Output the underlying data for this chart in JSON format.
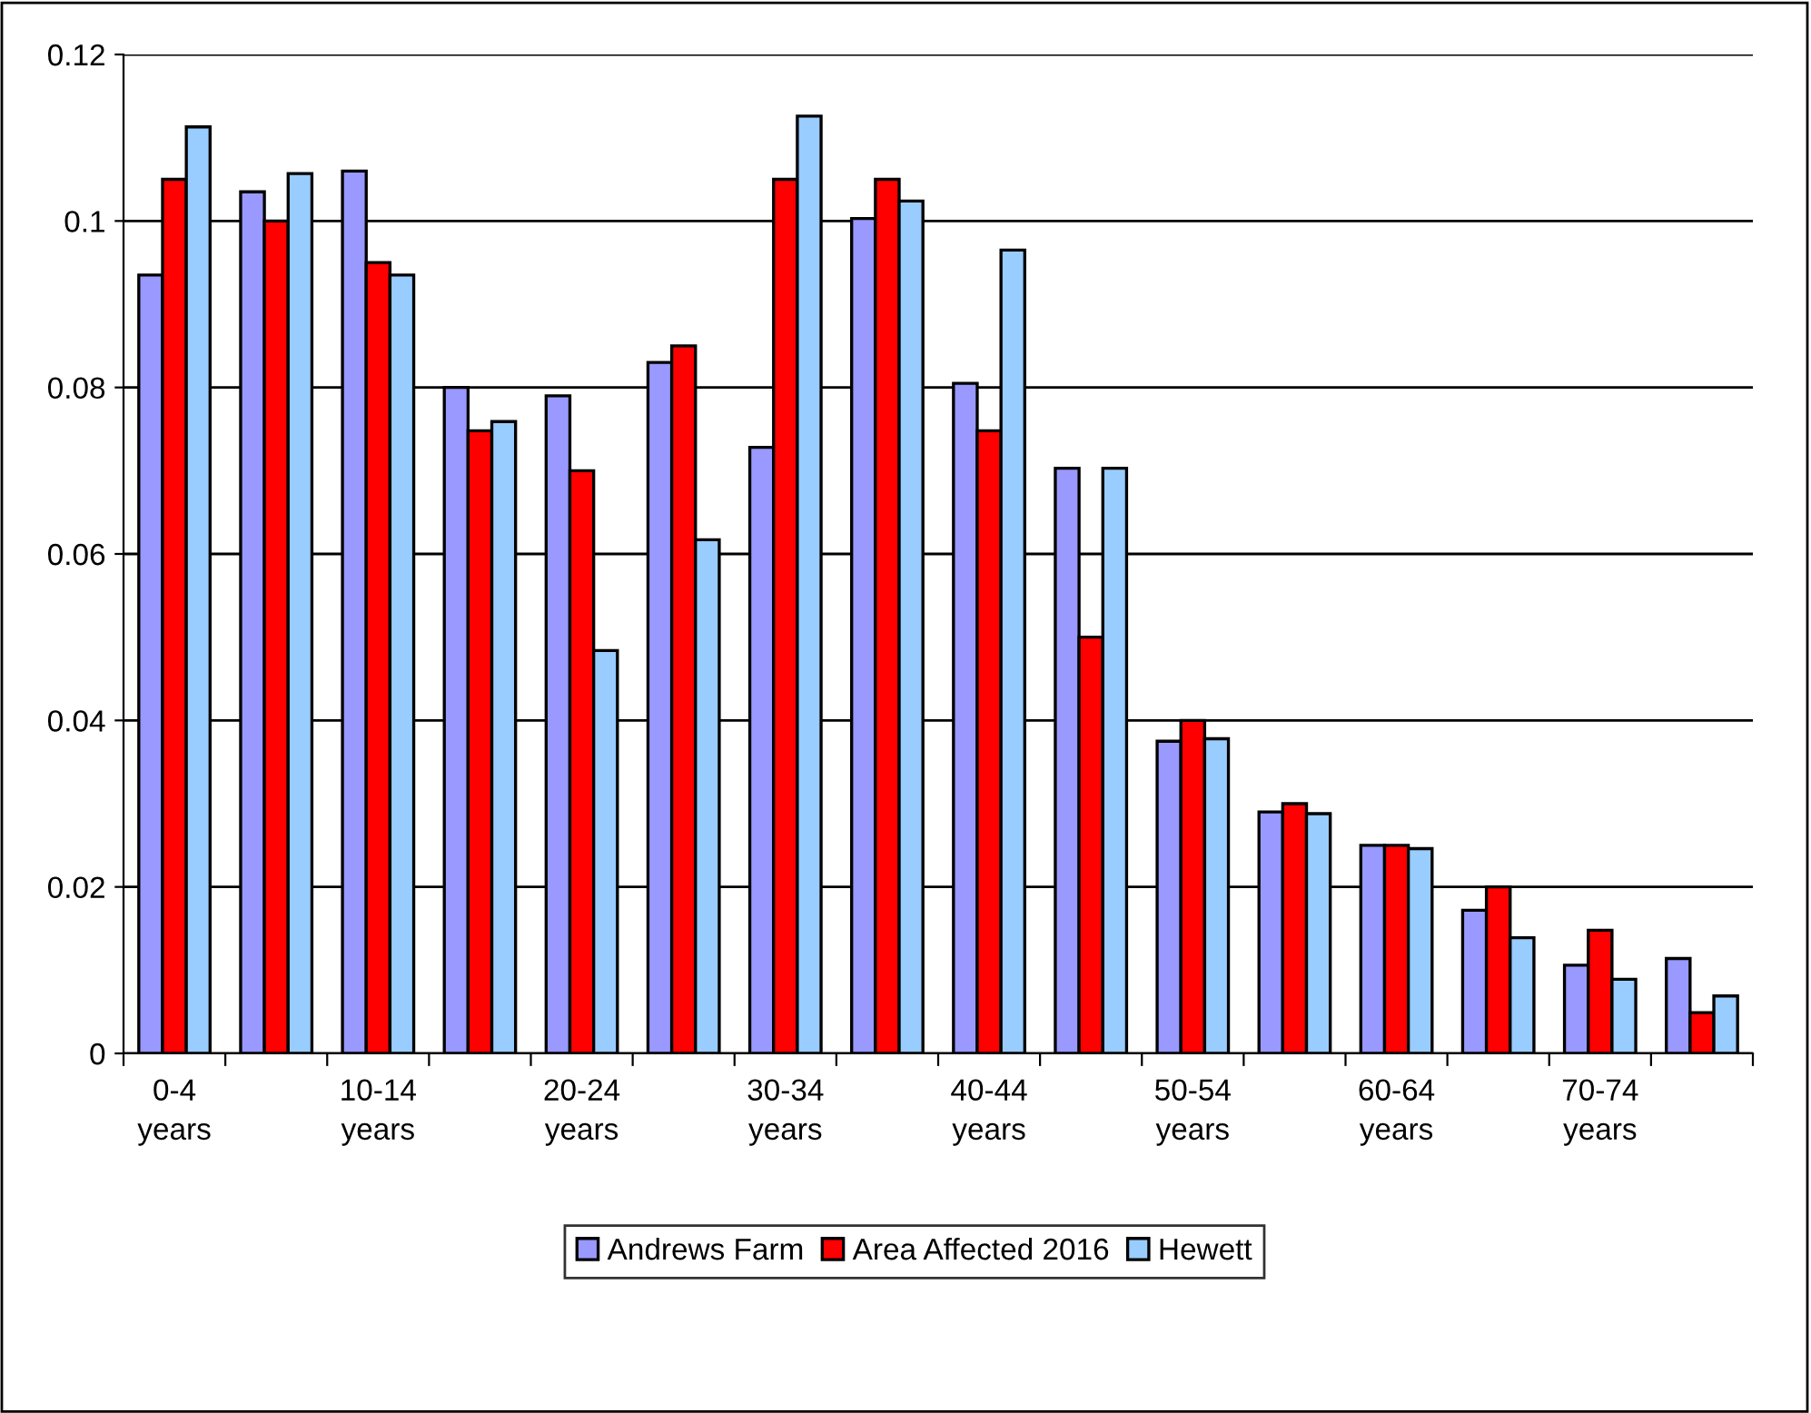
{
  "chart_data": {
    "type": "bar",
    "categories": [
      "0-4 years",
      null,
      "10-14 years",
      null,
      "20-24 years",
      null,
      "30-34 years",
      null,
      "40-44 years",
      null,
      "50-54 years",
      null,
      "60-64 years",
      null,
      "70-74 years",
      null
    ],
    "series": [
      {
        "name": "Andrews Farm",
        "color": "#9999ff",
        "values": [
          0.0935,
          0.1035,
          0.106,
          0.08,
          0.079,
          0.083,
          0.0728,
          0.1003,
          0.0805,
          0.0703,
          0.0375,
          0.029,
          0.025,
          0.0172,
          0.0106,
          0.0114
        ]
      },
      {
        "name": "Area Affected 2016",
        "color": "#ff0000",
        "values": [
          0.105,
          0.1,
          0.095,
          0.0748,
          0.07,
          0.085,
          0.105,
          0.105,
          0.0748,
          0.05,
          0.04,
          0.03,
          0.025,
          0.02,
          0.0148,
          0.0049
        ]
      },
      {
        "name": "Hewett",
        "color": "#99ccff",
        "values": [
          0.1113,
          0.1057,
          0.0935,
          0.0759,
          0.0484,
          0.0617,
          0.1126,
          0.1024,
          0.0965,
          0.0703,
          0.0378,
          0.0288,
          0.0246,
          0.0139,
          0.0089,
          0.0069
        ]
      }
    ],
    "ylim": [
      0,
      0.12
    ],
    "yticks": [
      0,
      0.02,
      0.04,
      0.06,
      0.08,
      0.1,
      0.12
    ],
    "grid": "y",
    "legend": "bottom"
  }
}
